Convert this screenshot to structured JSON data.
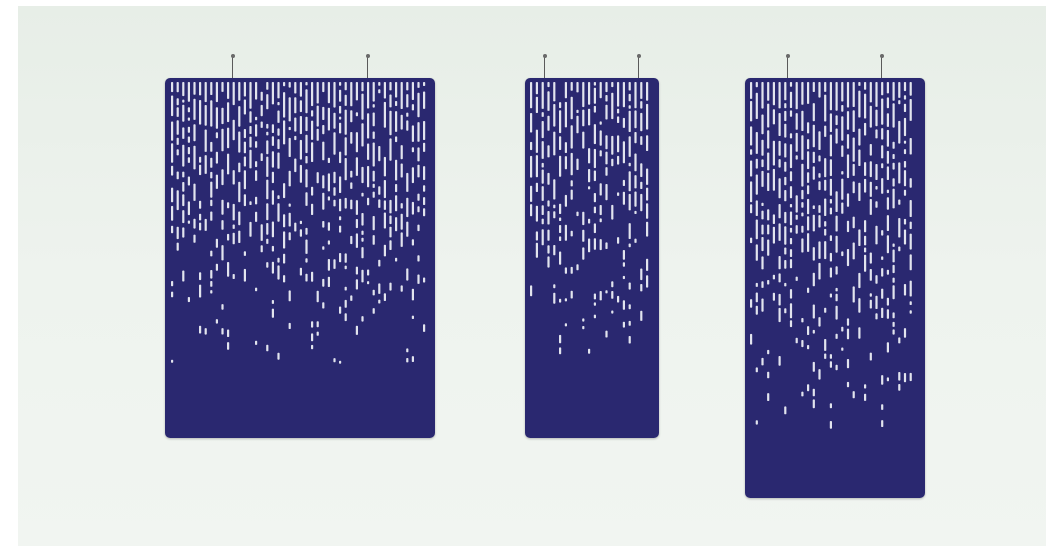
{
  "scene": {
    "panel_color": "#2a2870",
    "slot_color": "#e2e4ee",
    "background_color": "#ecf2ec"
  },
  "panels": [
    {
      "id": "panel-left",
      "orientation": "wide",
      "hangers": 2
    },
    {
      "id": "panel-middle",
      "orientation": "narrow",
      "hangers": 2
    },
    {
      "id": "panel-right",
      "orientation": "tall",
      "hangers": 2
    }
  ]
}
